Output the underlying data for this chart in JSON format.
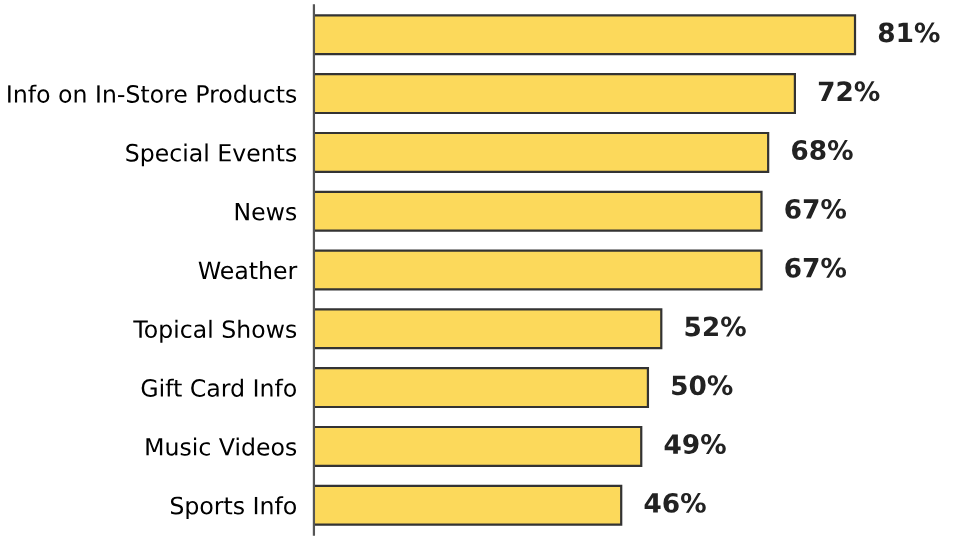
{
  "chart_data": {
    "type": "bar",
    "orientation": "horizontal",
    "categories": [
      null,
      "Info on In-Store Products",
      "Special Events",
      "News",
      "Weather",
      "Topical Shows",
      "Gift Card Info",
      "Music Videos",
      "Sports Info"
    ],
    "values": [
      81,
      72,
      68,
      67,
      67,
      52,
      50,
      49,
      46
    ],
    "value_labels": [
      "81%",
      "72%",
      "68%",
      "67%",
      "67%",
      "52%",
      "50%",
      "49%",
      "46%"
    ],
    "color": "#fcd95b",
    "grid": false,
    "legend": false
  }
}
